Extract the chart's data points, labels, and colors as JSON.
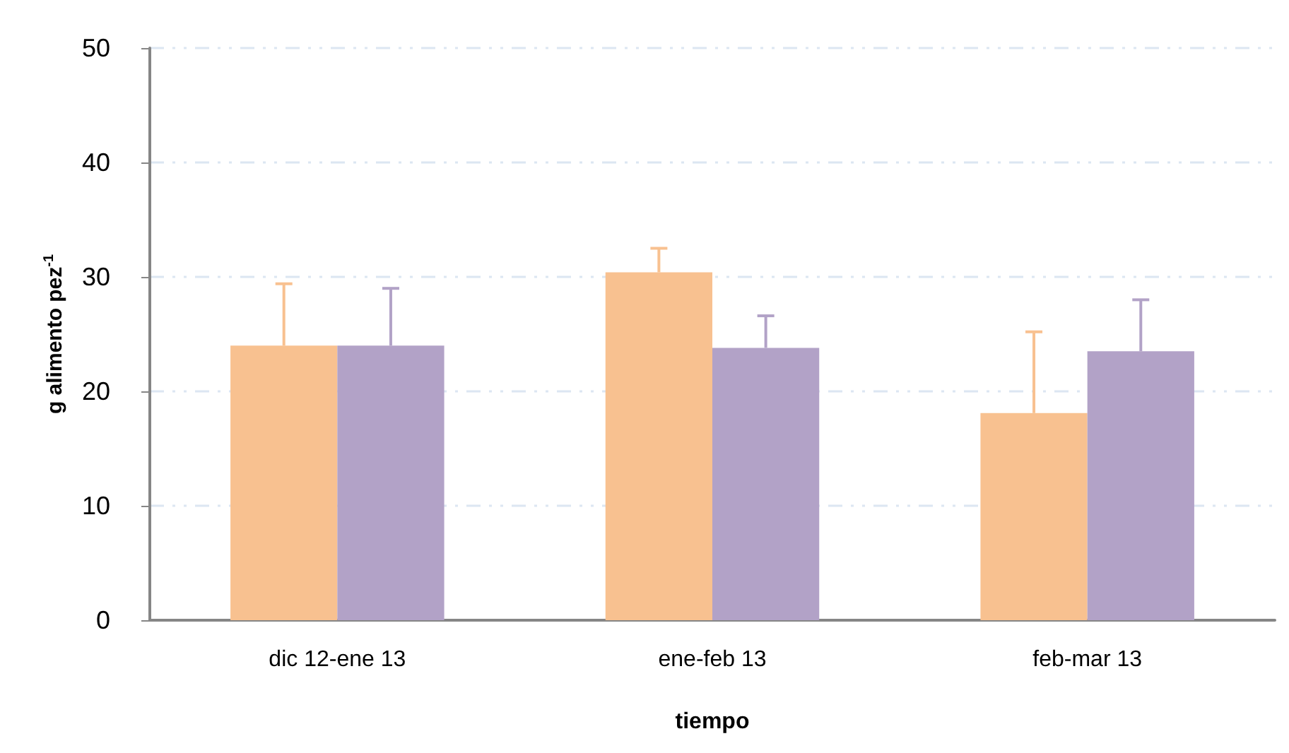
{
  "chart_data": {
    "type": "bar",
    "xlabel": "tiempo",
    "ylabel": "g alimento pez$^{-1}$",
    "categories": [
      "dic 12-ene 13",
      "ene-feb 13",
      "feb-mar 13"
    ],
    "series": [
      {
        "color": "#f8c190",
        "values": [
          24.0,
          30.4,
          18.1
        ],
        "errors": [
          [
            24.0,
            29.4
          ],
          [
            30.4,
            32.5
          ],
          [
            18.1,
            25.2
          ]
        ]
      },
      {
        "color": "#b2a2c7",
        "values": [
          24.0,
          23.8,
          23.5
        ],
        "errors": [
          [
            24.0,
            29.0
          ],
          [
            23.8,
            26.6
          ],
          [
            23.5,
            28.0
          ]
        ]
      }
    ],
    "ylim": [
      0,
      50
    ],
    "yticks": [
      0,
      10,
      20,
      30,
      40,
      50
    ],
    "grid": "y"
  }
}
